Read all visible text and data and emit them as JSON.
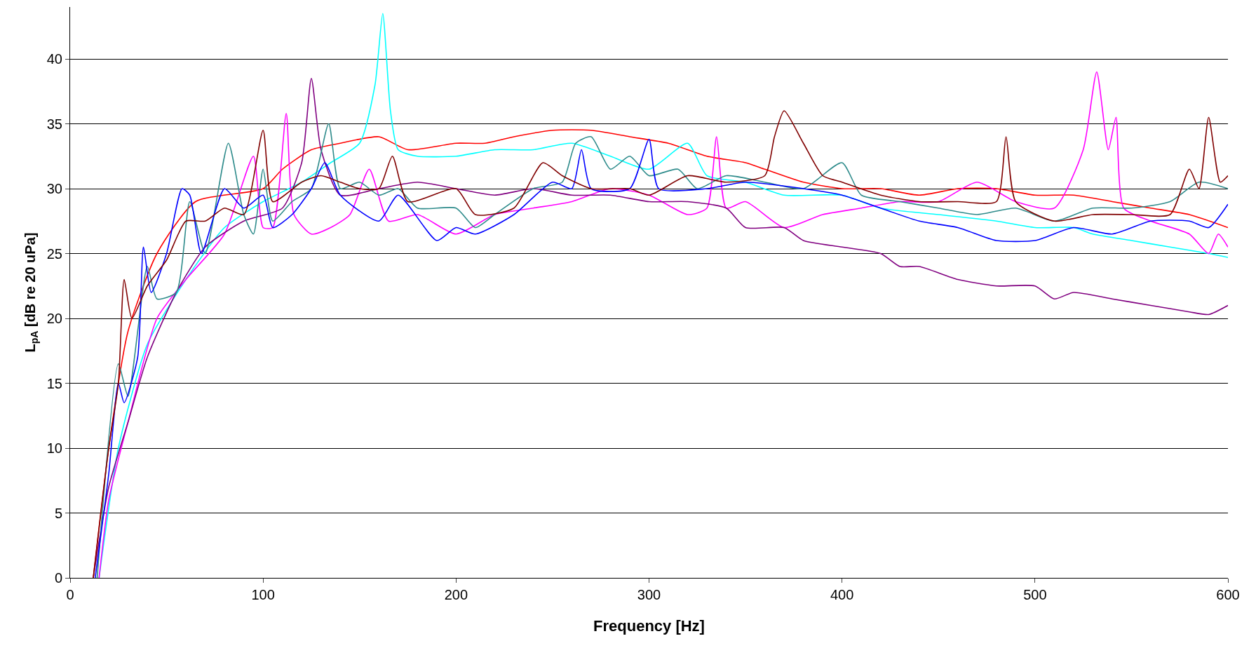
{
  "chart_data": {
    "type": "line",
    "xlabel": "Frequency [Hz]",
    "ylabel": "L$_{pA}$ [dB re 20 uPa]",
    "xlim": [
      0,
      600
    ],
    "xticks": [
      0,
      100,
      200,
      300,
      400,
      500,
      600
    ],
    "ylim": [
      0,
      44
    ],
    "yticks": [
      0,
      5,
      10,
      15,
      20,
      25,
      30,
      35,
      40
    ],
    "grid": "y",
    "marker": "none",
    "line_style": "solid",
    "series": [
      {
        "color": "#ff0000",
        "x": [
          12,
          20,
          30,
          45,
          65,
          100,
          110,
          125,
          140,
          160,
          175,
          200,
          215,
          230,
          250,
          270,
          290,
          310,
          330,
          350,
          360,
          380,
          400,
          420,
          440,
          460,
          480,
          500,
          520,
          540,
          560,
          580,
          600
        ],
        "values": [
          0,
          10,
          19,
          25,
          29,
          30,
          31.5,
          33,
          33.5,
          34,
          33,
          33.5,
          33.5,
          34,
          34.5,
          34.5,
          34,
          33.5,
          32.5,
          32,
          31.5,
          30.5,
          30,
          30,
          29.5,
          30,
          30,
          29.5,
          29.5,
          29,
          28.5,
          28,
          27
        ]
      },
      {
        "color": "#00ffff",
        "x": [
          15,
          25,
          40,
          60,
          80,
          100,
          120,
          135,
          150,
          158,
          162,
          166,
          170,
          180,
          200,
          220,
          240,
          260,
          280,
          300,
          320,
          330,
          350,
          370,
          400,
          420,
          450,
          480,
          500,
          520,
          530,
          550,
          570,
          590,
          600
        ],
        "values": [
          0,
          10,
          18,
          23,
          27,
          29,
          30.5,
          32,
          33.5,
          38,
          43.5,
          36,
          33,
          32.5,
          32.5,
          33,
          33,
          33.5,
          32.5,
          31.5,
          33.5,
          31,
          30.5,
          29.5,
          29.5,
          28.5,
          28,
          27.5,
          27,
          27,
          26.5,
          26,
          25.5,
          25,
          24.7
        ]
      },
      {
        "color": "#ff00ff",
        "x": [
          15,
          20,
          30,
          45,
          60,
          80,
          95,
          100,
          105,
          112,
          116,
          125,
          135,
          145,
          155,
          165,
          180,
          200,
          220,
          240,
          260,
          280,
          300,
          320,
          330,
          335,
          340,
          350,
          370,
          390,
          410,
          430,
          450,
          470,
          490,
          510,
          525,
          532,
          538,
          542,
          546,
          560,
          580,
          590,
          595,
          600
        ],
        "values": [
          0,
          6,
          12,
          20,
          23,
          26.5,
          32.5,
          27,
          27,
          35.8,
          28,
          26.5,
          27,
          28,
          31.5,
          27.5,
          28,
          26.5,
          28,
          28.5,
          29,
          30,
          29.5,
          28,
          28.5,
          34,
          28.5,
          29,
          27,
          28,
          28.5,
          29,
          29,
          30.5,
          29,
          28.5,
          33,
          39,
          33,
          35.5,
          28.5,
          27.5,
          26.5,
          25,
          26.5,
          25.5
        ]
      },
      {
        "color": "#800080",
        "x": [
          12,
          20,
          30,
          40,
          55,
          70,
          90,
          110,
          120,
          125,
          130,
          140,
          160,
          180,
          200,
          220,
          240,
          260,
          280,
          300,
          320,
          340,
          350,
          370,
          380,
          400,
          420,
          430,
          440,
          460,
          480,
          500,
          510,
          520,
          540,
          560,
          580,
          590,
          600
        ],
        "values": [
          0,
          7,
          12,
          17,
          22,
          25.5,
          27.5,
          28.5,
          32,
          38.5,
          33,
          29.5,
          30,
          30.5,
          30,
          29.5,
          30,
          29.5,
          29.5,
          29,
          29,
          28.5,
          27,
          27,
          26,
          25.5,
          25,
          24,
          24,
          23,
          22.5,
          22.5,
          21.5,
          22,
          21.5,
          21,
          20.5,
          20.3,
          21
        ]
      },
      {
        "color": "#2e8b8b",
        "x": [
          14,
          25,
          30,
          40,
          45,
          55,
          62,
          70,
          82,
          90,
          95,
          100,
          105,
          115,
          125,
          134,
          140,
          150,
          160,
          170,
          180,
          200,
          210,
          220,
          240,
          255,
          262,
          270,
          280,
          290,
          300,
          315,
          325,
          340,
          360,
          380,
          400,
          410,
          430,
          450,
          470,
          490,
          510,
          530,
          550,
          570,
          585,
          600
        ],
        "values": [
          0,
          16.5,
          14,
          24,
          21.5,
          22,
          29,
          25,
          33.5,
          28,
          26.5,
          31.5,
          27.5,
          29,
          30,
          35,
          30,
          30.5,
          29.5,
          30,
          28.5,
          28.5,
          27,
          28,
          30,
          30.5,
          33.5,
          34,
          31.5,
          32.5,
          31,
          31.5,
          30,
          31,
          30.5,
          30,
          32,
          29.5,
          29,
          28.5,
          28,
          28.5,
          27.5,
          28.5,
          28.5,
          29,
          30.5,
          30
        ]
      },
      {
        "color": "#0000ff",
        "x": [
          13,
          20,
          25,
          28,
          35,
          38,
          42,
          50,
          58,
          62,
          68,
          80,
          90,
          100,
          105,
          115,
          125,
          132,
          140,
          160,
          170,
          190,
          200,
          210,
          230,
          250,
          260,
          265,
          270,
          290,
          300,
          305,
          330,
          350,
          380,
          400,
          420,
          440,
          460,
          480,
          500,
          520,
          540,
          560,
          580,
          590,
          600
        ],
        "values": [
          0,
          8,
          15,
          13.5,
          17,
          25.5,
          22,
          25,
          30,
          29.5,
          25,
          30,
          28.5,
          29.5,
          27,
          28,
          30,
          32,
          29.5,
          27.5,
          29.5,
          26,
          27,
          26.5,
          28,
          30.5,
          30,
          33,
          30,
          30,
          33.8,
          30,
          30,
          30.5,
          30,
          29.5,
          28.5,
          27.5,
          27,
          26,
          26,
          27,
          26.5,
          27.5,
          27.5,
          27,
          28.8
        ]
      },
      {
        "color": "#800000",
        "x": [
          12,
          20,
          25,
          28,
          32,
          40,
          50,
          60,
          70,
          80,
          90,
          100,
          105,
          120,
          130,
          140,
          150,
          160,
          167,
          175,
          200,
          210,
          230,
          245,
          255,
          270,
          290,
          300,
          320,
          340,
          360,
          365,
          370,
          380,
          390,
          400,
          420,
          440,
          460,
          480,
          485,
          490,
          510,
          530,
          550,
          570,
          580,
          585,
          590,
          596,
          600
        ],
        "values": [
          0,
          10,
          15,
          23,
          20,
          22.5,
          24.5,
          27.5,
          27.5,
          28.5,
          28,
          34.5,
          29,
          30.5,
          31,
          30.5,
          30,
          30,
          32.5,
          29,
          30,
          28,
          28.5,
          32,
          31,
          30,
          30,
          29.5,
          31,
          30.5,
          31,
          34,
          36,
          33.5,
          31,
          30.5,
          29.5,
          29,
          29,
          29,
          34,
          29,
          27.5,
          28,
          28,
          28,
          31.5,
          30,
          35.5,
          30.5,
          31
        ]
      }
    ]
  }
}
